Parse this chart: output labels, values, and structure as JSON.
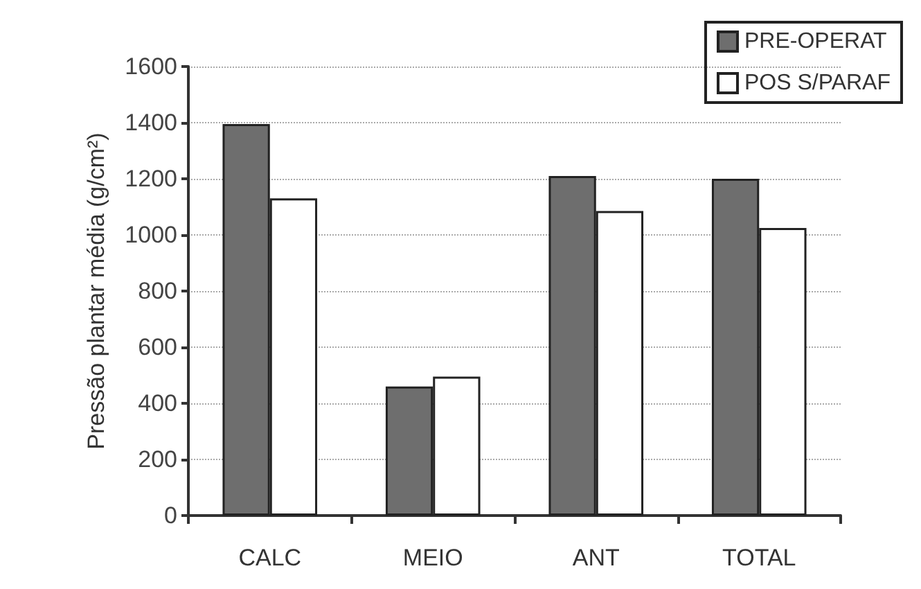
{
  "chart_data": {
    "type": "bar",
    "ylabel": "Pressão plantar média (g/cm²)",
    "categories": [
      "CALC",
      "MEIO",
      "ANT",
      "TOTAL"
    ],
    "series": [
      {
        "name": "PRE-OPERAT",
        "color": "#6e6e6e",
        "values": [
          1395,
          460,
          1210,
          1200
        ]
      },
      {
        "name": "POS S/PARAF",
        "color": "#ffffff",
        "values": [
          1130,
          495,
          1085,
          1025
        ]
      }
    ],
    "ylim": [
      0,
      1600
    ],
    "yticks": [
      0,
      200,
      400,
      600,
      800,
      1000,
      1200,
      1400,
      1600
    ],
    "grid": "y",
    "legend": "top right"
  }
}
